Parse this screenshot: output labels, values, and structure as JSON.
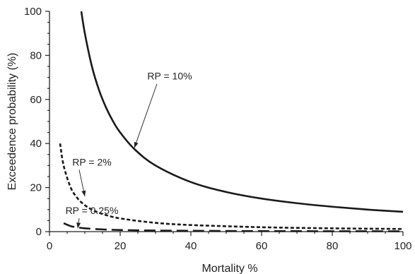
{
  "chart_data": {
    "type": "line",
    "xlabel": "Mortality %",
    "ylabel": "Exceedence probability (%)",
    "xlim": [
      0,
      100
    ],
    "ylim": [
      0,
      100
    ],
    "xticks": [
      0,
      20,
      40,
      60,
      80,
      100
    ],
    "yticks": [
      0,
      20,
      40,
      60,
      80,
      100
    ],
    "xtick_labels": [
      "0",
      "20",
      "40",
      "60",
      "80",
      "100"
    ],
    "ytick_labels": [
      "0",
      "20",
      "40",
      "60",
      "80",
      "100"
    ],
    "grid": false,
    "series": [
      {
        "style": "solid",
        "x": [
          9,
          10,
          12,
          14,
          16,
          18,
          20,
          24,
          30,
          40,
          50,
          60,
          70,
          80,
          90,
          100
        ],
        "y": [
          100,
          90,
          75,
          64.3,
          56.3,
          50,
          45,
          37.5,
          30,
          22.5,
          18,
          15,
          12.9,
          11.3,
          10,
          9
        ]
      },
      {
        "style": "dashed",
        "x": [
          3,
          4,
          6,
          8,
          10,
          12,
          15,
          20,
          30,
          40,
          60,
          80,
          100
        ],
        "y": [
          40,
          30,
          20,
          15,
          12,
          10,
          8,
          6,
          4,
          3,
          2,
          1.5,
          1.2
        ]
      },
      {
        "style": "long-dash",
        "x": [
          4,
          6,
          8,
          10,
          15,
          20,
          30,
          50,
          75,
          100
        ],
        "y": [
          3.8,
          2.5,
          1.9,
          1.5,
          1.0,
          0.75,
          0.5,
          0.3,
          0.2,
          0.15
        ]
      }
    ],
    "annotations": [
      {
        "text": "RP = 10%",
        "text_at": [
          34,
          69
        ],
        "points_to": [
          24,
          38
        ]
      },
      {
        "text": "RP = 2%",
        "text_at": [
          12,
          30
        ],
        "points_to": [
          10,
          16
        ]
      },
      {
        "text": "RP = 0.25%",
        "text_at": [
          12,
          8
        ],
        "points_to": [
          8,
          1.5
        ]
      }
    ]
  }
}
